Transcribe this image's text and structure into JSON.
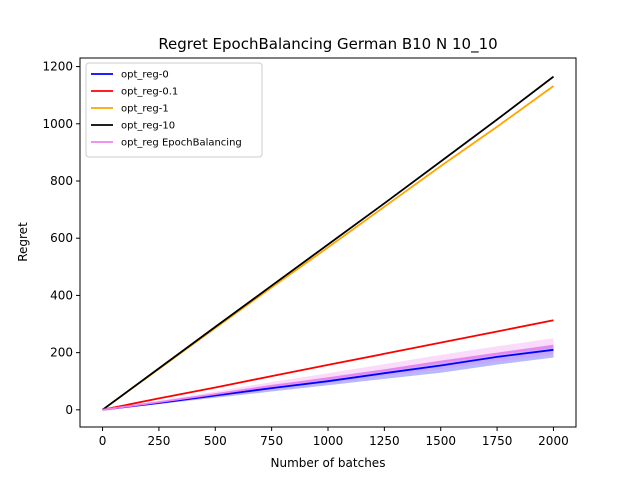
{
  "chart_data": {
    "type": "line",
    "title": "Regret EpochBalancing German B10 N 10_10",
    "xlabel": "Number of batches",
    "ylabel": "Regret",
    "xlim": [
      -100,
      2100
    ],
    "ylim": [
      -60,
      1230
    ],
    "xticks": [
      0,
      250,
      500,
      750,
      1000,
      1250,
      1500,
      1750,
      2000
    ],
    "yticks": [
      0,
      200,
      400,
      600,
      800,
      1000,
      1200
    ],
    "legend_position": "upper-left",
    "grid": false,
    "series": [
      {
        "name": "opt_reg-0",
        "color": "#0000ff",
        "x": [
          0,
          250,
          500,
          750,
          1000,
          1250,
          1500,
          1750,
          2000
        ],
        "y": [
          0,
          24,
          50,
          76,
          100,
          128,
          155,
          185,
          210
        ],
        "band": {
          "lower": [
            0,
            20,
            42,
            64,
            86,
            108,
            130,
            158,
            183
          ],
          "upper": [
            0,
            28,
            58,
            86,
            114,
            142,
            172,
            200,
            228
          ]
        }
      },
      {
        "name": "opt_reg-0.1",
        "color": "#ff0000",
        "x": [
          0,
          250,
          500,
          750,
          1000,
          1250,
          1500,
          1750,
          2000
        ],
        "y": [
          0,
          40,
          78,
          118,
          157,
          196,
          235,
          274,
          313
        ]
      },
      {
        "name": "opt_reg-1",
        "color": "#ffa500",
        "x": [
          0,
          250,
          500,
          750,
          1000,
          1250,
          1500,
          1750,
          2000
        ],
        "y": [
          0,
          143,
          286,
          428,
          568,
          710,
          852,
          990,
          1132
        ]
      },
      {
        "name": "opt_reg-10",
        "color": "#000000",
        "x": [
          0,
          250,
          500,
          750,
          1000,
          1250,
          1500,
          1750,
          2000
        ],
        "y": [
          0,
          145,
          290,
          434,
          578,
          722,
          868,
          1015,
          1165
        ]
      },
      {
        "name": "opt_reg EpochBalancing",
        "color": "#ee82ee",
        "x": [
          0,
          250,
          500,
          750,
          1000,
          1250,
          1500,
          1750,
          2000
        ],
        "y": [
          0,
          27,
          55,
          84,
          110,
          138,
          168,
          196,
          222
        ],
        "band": {
          "lower": [
            0,
            22,
            46,
            70,
            94,
            118,
            142,
            168,
            193
          ],
          "upper": [
            0,
            32,
            64,
            97,
            128,
            160,
            192,
            222,
            250
          ]
        }
      }
    ]
  }
}
